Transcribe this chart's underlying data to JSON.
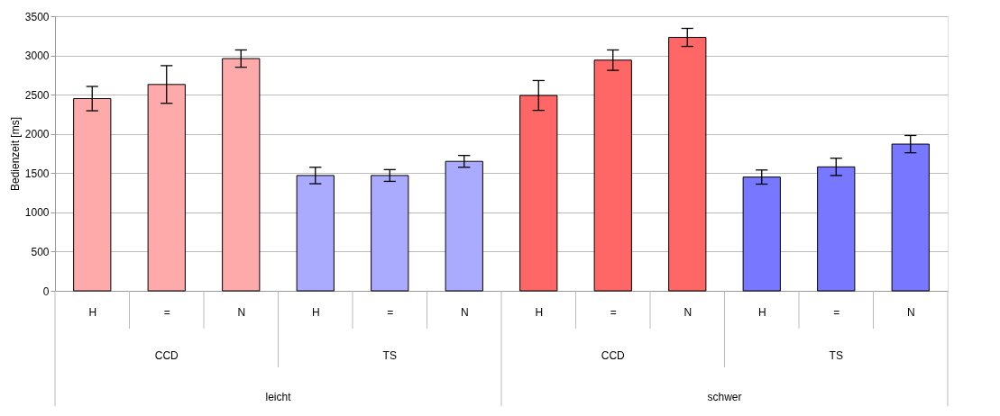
{
  "chart_data": {
    "type": "bar",
    "ylabel": "Bedienzeit [ms]",
    "categories": [
      "H",
      "=",
      "N",
      "H",
      "=",
      "N",
      "H",
      "=",
      "N",
      "H",
      "=",
      "N"
    ],
    "values": [
      2450,
      2630,
      2960,
      1470,
      1470,
      1650,
      2490,
      2940,
      3230,
      1450,
      1580,
      1870
    ],
    "errors": [
      155,
      240,
      110,
      105,
      75,
      75,
      190,
      130,
      115,
      90,
      110,
      110
    ],
    "colors": [
      "#ffaaaa",
      "#ffaaaa",
      "#ffaaaa",
      "#aaaaff",
      "#aaaaff",
      "#aaaaff",
      "#ff6666",
      "#ff6666",
      "#ff6666",
      "#7777ff",
      "#7777ff",
      "#7777ff"
    ],
    "annotations": [
      "CCD",
      "TS",
      "CCD",
      "TS",
      "leicht",
      "schwer"
    ],
    "ylim": [
      0,
      3500
    ],
    "yticks": [
      0,
      500,
      1000,
      1500,
      2000,
      2500,
      3000,
      3500
    ],
    "grid": "y"
  }
}
